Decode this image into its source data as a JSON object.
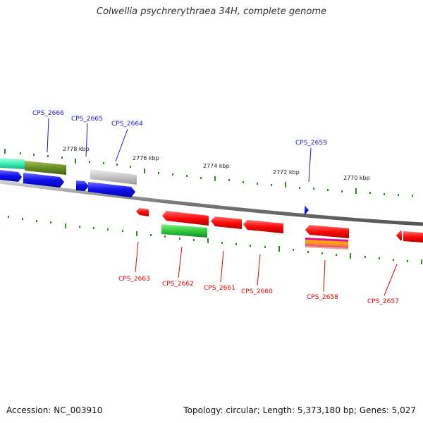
{
  "title": "Colwellia psychrerythraea 34H, complete genome",
  "accession": "Accession: NC_003910",
  "summary": "Topology: circular; Length: 5,373,180 bp; Genes: 5,027",
  "colors": {
    "forward": "#1a1aff",
    "reverse": "#ff0a0a",
    "label_forward": "#1a1acc",
    "label_reverse": "#dd0000",
    "backbone": "#8a8a8a",
    "tick": "#2e8b22"
  },
  "scale_labels": [
    "2778 kbp",
    "2776 kbp",
    "2774 kbp",
    "2772 kbp",
    "2770 kbp"
  ],
  "genes_forward": [
    "CPS_2666",
    "CPS_2665",
    "CPS_2664",
    "CPS_2659"
  ],
  "genes_reverse": [
    "CPS_2663",
    "CPS_2662",
    "CPS_2661",
    "CPS_2660",
    "CPS_2658",
    "CPS_2657"
  ]
}
